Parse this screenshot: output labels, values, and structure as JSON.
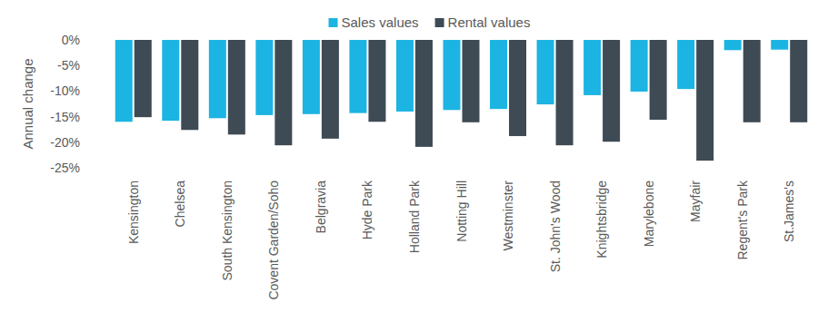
{
  "chart_data": {
    "type": "bar",
    "y_label": "Annual change",
    "categories": [
      "Kensington",
      "Chelsea",
      "South Kensington",
      "Covent Garden/Soho",
      "Belgravia",
      "Hyde Park",
      "Holland Park",
      "Notting Hill",
      "Westminster",
      "St. John's Wood",
      "Knightsbridge",
      "Marylebone",
      "Mayfair",
      "Regent's Park",
      "St.James's"
    ],
    "series": [
      {
        "name": "Sales values",
        "color": "#1cb4e2",
        "values": [
          -16.0,
          -15.8,
          -15.3,
          -14.7,
          -14.5,
          -14.3,
          -14.0,
          -13.7,
          -13.5,
          -12.6,
          -10.8,
          -10.1,
          -9.6,
          -2.0,
          -1.9
        ]
      },
      {
        "name": "Rental values",
        "color": "#3e4a54",
        "values": [
          -15.1,
          -17.6,
          -18.5,
          -20.6,
          -19.3,
          -16.0,
          -20.9,
          -16.1,
          -18.8,
          -20.6,
          -19.9,
          -15.6,
          -23.6,
          -16.1,
          -16.1
        ]
      }
    ],
    "ylim": [
      -25,
      0
    ],
    "yticks": [
      {
        "value": 0,
        "label": "0%"
      },
      {
        "value": -5,
        "label": "-5%"
      },
      {
        "value": -10,
        "label": "-10%"
      },
      {
        "value": -15,
        "label": "-15%"
      },
      {
        "value": -20,
        "label": "-20%"
      },
      {
        "value": -25,
        "label": "-25%"
      }
    ],
    "legend": "top",
    "grid": false
  }
}
